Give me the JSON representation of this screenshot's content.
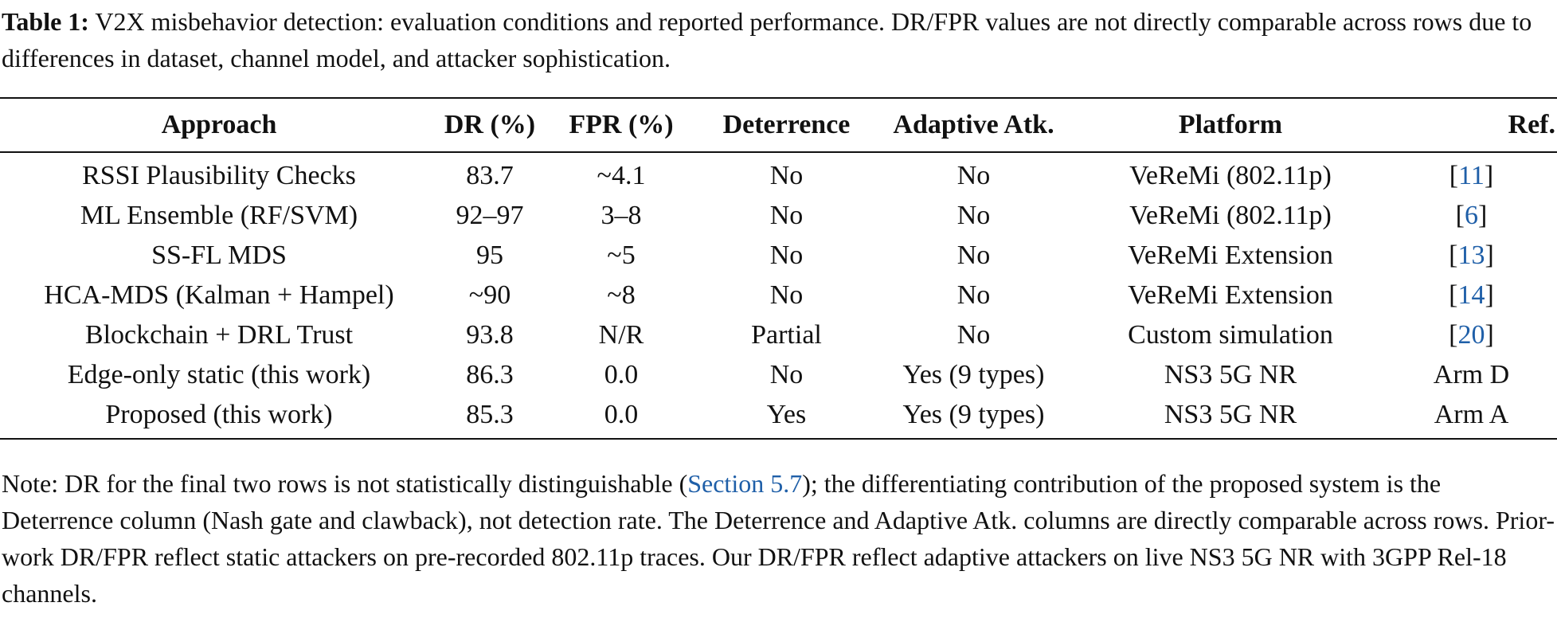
{
  "caption": {
    "label": "Table 1:",
    "text": " V2X misbehavior detection: evaluation conditions and reported performance. DR/FPR values are not directly comparable across rows due to differences in dataset, channel model, and attacker sophistication."
  },
  "table": {
    "headers": {
      "approach": "Approach",
      "dr": "DR (%)",
      "fpr": "FPR (%)",
      "deterrence": "Deterrence",
      "adaptive": "Adaptive Atk.",
      "platform": "Platform",
      "ref": "Ref."
    },
    "rows": [
      {
        "approach": "RSSI Plausibility Checks",
        "dr": "83.7",
        "fpr": "~4.1",
        "deterrence": "No",
        "adaptive": "No",
        "platform": "VeReMi (802.11p)",
        "ref_open": "[",
        "ref_num": "11",
        "ref_close": "]"
      },
      {
        "approach": "ML Ensemble (RF/SVM)",
        "dr": "92–97",
        "fpr": "3–8",
        "deterrence": "No",
        "adaptive": "No",
        "platform": "VeReMi (802.11p)",
        "ref_open": "[",
        "ref_num": "6",
        "ref_close": "]"
      },
      {
        "approach": "SS-FL MDS",
        "dr": "95",
        "fpr": "~5",
        "deterrence": "No",
        "adaptive": "No",
        "platform": "VeReMi Extension",
        "ref_open": "[",
        "ref_num": "13",
        "ref_close": "]"
      },
      {
        "approach": "HCA-MDS (Kalman + Hampel)",
        "dr": "~90",
        "fpr": "~8",
        "deterrence": "No",
        "adaptive": "No",
        "platform": "VeReMi Extension",
        "ref_open": "[",
        "ref_num": "14",
        "ref_close": "]"
      },
      {
        "approach": "Blockchain + DRL Trust",
        "dr": "93.8",
        "fpr": "N/R",
        "deterrence": "Partial",
        "adaptive": "No",
        "platform": "Custom simulation",
        "ref_open": "[",
        "ref_num": "20",
        "ref_close": "]"
      },
      {
        "approach": "Edge-only static (this work)",
        "dr": "86.3",
        "fpr": "0.0",
        "deterrence": "No",
        "adaptive": "Yes (9 types)",
        "platform": "NS3 5G NR",
        "ref_text": "Arm D"
      },
      {
        "approach": "Proposed (this work)",
        "dr": "85.3",
        "fpr": "0.0",
        "deterrence": "Yes",
        "adaptive": "Yes (9 types)",
        "platform": "NS3 5G NR",
        "ref_text": "Arm A"
      }
    ]
  },
  "note": {
    "part1": "Note: DR for the final two rows is not statistically distinguishable (",
    "link": "Section 5.7",
    "part2": "); the differentiating contribution of the proposed system is the Deterrence column (Nash gate and clawback), not detection rate. The Deterrence and Adaptive Atk. columns are directly comparable across rows. Prior-work DR/FPR reflect static attackers on pre-recorded 802.11p traces. Our DR/FPR reflect adaptive attackers on live NS3 5G NR with 3GPP Rel-18 channels."
  },
  "colors": {
    "text": "#111111",
    "citation": "#1f5fa8"
  }
}
